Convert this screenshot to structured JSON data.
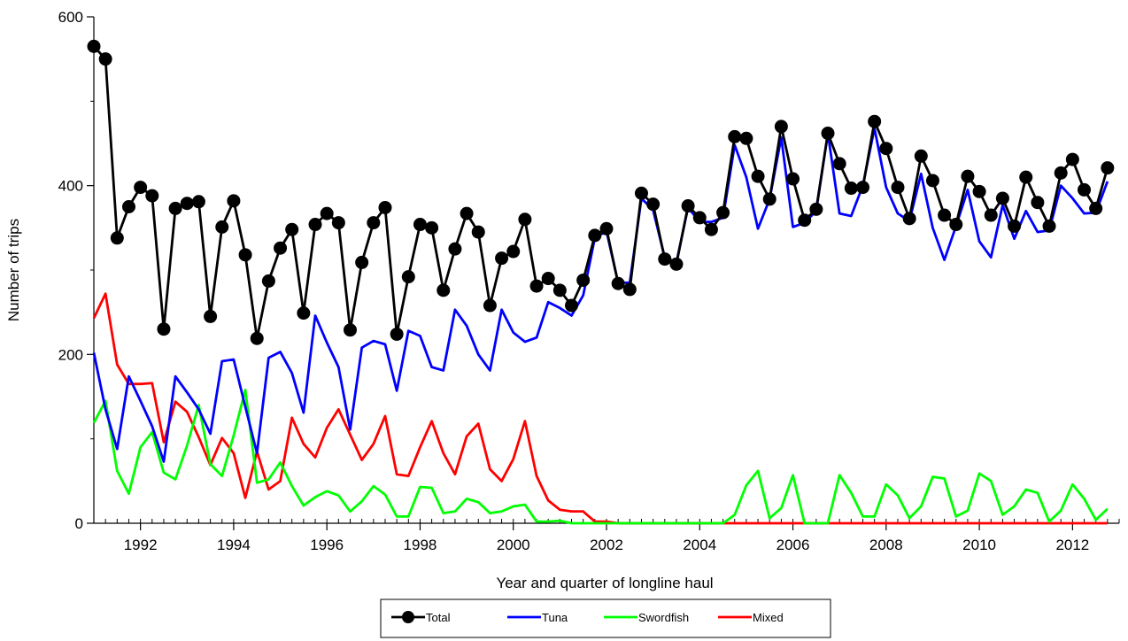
{
  "chart_data": {
    "type": "line",
    "xlabel": "Year and quarter of longline haul",
    "ylabel": "Number of trips",
    "xlim": [
      1991,
      2013
    ],
    "ylim": [
      0,
      600
    ],
    "x_ticks": [
      "1992",
      "1994",
      "1996",
      "1998",
      "2000",
      "2002",
      "2004",
      "2006",
      "2008",
      "2010",
      "2012"
    ],
    "x_tick_values": [
      1992,
      1994,
      1996,
      1998,
      2000,
      2002,
      2004,
      2006,
      2008,
      2010,
      2012
    ],
    "y_ticks": [
      "0",
      "200",
      "400",
      "600"
    ],
    "y_tick_values": [
      0,
      200,
      400,
      600
    ],
    "grid": false,
    "legend_position": "bottom",
    "x_start": 1991.0,
    "x_step": 0.25,
    "series": [
      {
        "name": "Total",
        "color": "#000000",
        "markers": true,
        "values": [
          565,
          550,
          338,
          375,
          398,
          388,
          230,
          373,
          379,
          381,
          245,
          351,
          382,
          318,
          219,
          287,
          326,
          348,
          249,
          354,
          367,
          356,
          229,
          309,
          356,
          374,
          224,
          292,
          354,
          350,
          276,
          325,
          367,
          345,
          258,
          314,
          322,
          360,
          281,
          290,
          276,
          258,
          288,
          341,
          349,
          284,
          277,
          391,
          378,
          313,
          307,
          376,
          362,
          348,
          368,
          458,
          456,
          411,
          384,
          470,
          408,
          359,
          372,
          462,
          426,
          397,
          398,
          476,
          444,
          398,
          361,
          435,
          406,
          365,
          354,
          411,
          393,
          365,
          385,
          352,
          410,
          380,
          352,
          415,
          431,
          395,
          373,
          421
        ]
      },
      {
        "name": "Tuna",
        "color": "#0000ff",
        "markers": false,
        "values": [
          202,
          135,
          88,
          174,
          145,
          115,
          73,
          174,
          155,
          135,
          106,
          192,
          194,
          138,
          83,
          196,
          203,
          178,
          131,
          246,
          214,
          185,
          111,
          208,
          216,
          212,
          157,
          228,
          222,
          185,
          181,
          253,
          234,
          200,
          181,
          253,
          226,
          215,
          220,
          262,
          255,
          246,
          270,
          338,
          346,
          285,
          285,
          385,
          371,
          315,
          309,
          374,
          357,
          357,
          362,
          448,
          410,
          349,
          384,
          457,
          351,
          356,
          370,
          462,
          367,
          364,
          400,
          468,
          398,
          367,
          358,
          414,
          350,
          312,
          352,
          395,
          334,
          315,
          377,
          337,
          370,
          345,
          347,
          400,
          385,
          367,
          368,
          405
        ]
      },
      {
        "name": "Swordfish",
        "color": "#00ff00",
        "markers": false,
        "values": [
          119,
          145,
          62,
          35,
          90,
          108,
          60,
          52,
          92,
          140,
          70,
          56,
          104,
          158,
          48,
          52,
          72,
          44,
          21,
          31,
          38,
          33,
          14,
          26,
          44,
          34,
          8,
          8,
          43,
          42,
          12,
          14,
          29,
          25,
          12,
          14,
          20,
          22,
          2,
          2,
          3,
          0,
          0,
          0,
          0,
          0,
          0,
          0,
          0,
          0,
          0,
          0,
          0,
          0,
          0,
          10,
          45,
          62,
          6,
          18,
          57,
          0,
          0,
          0,
          57,
          36,
          8,
          8,
          46,
          33,
          6,
          20,
          55,
          53,
          8,
          15,
          59,
          50,
          10,
          20,
          40,
          36,
          2,
          15,
          46,
          29,
          4,
          17
        ]
      },
      {
        "name": "Mixed",
        "color": "#ff0000",
        "markers": false,
        "values": [
          243,
          272,
          188,
          165,
          165,
          166,
          96,
          144,
          132,
          102,
          69,
          101,
          83,
          30,
          85,
          40,
          50,
          125,
          94,
          78,
          113,
          135,
          105,
          75,
          94,
          127,
          58,
          56,
          90,
          121,
          83,
          58,
          103,
          118,
          64,
          50,
          76,
          121,
          56,
          27,
          16,
          14,
          14,
          2,
          2,
          0,
          0,
          0,
          0,
          0,
          0,
          0,
          0,
          0,
          0,
          0,
          0,
          0,
          0,
          0,
          0,
          0,
          0,
          0,
          0,
          0,
          0,
          0,
          0,
          0,
          0,
          0,
          0,
          0,
          0,
          0,
          0,
          0,
          0,
          0,
          0,
          0,
          0,
          0,
          0,
          0,
          0,
          0
        ]
      }
    ]
  }
}
